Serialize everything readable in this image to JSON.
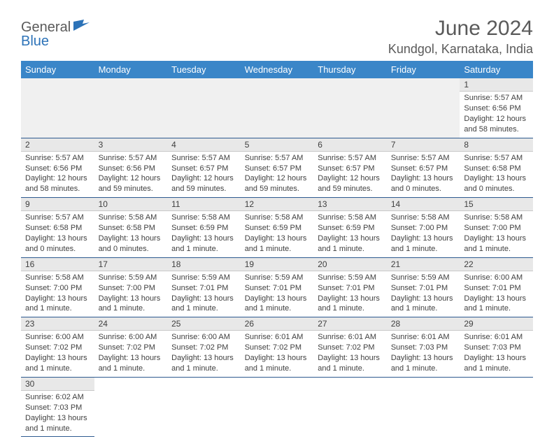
{
  "logo": {
    "part1": "General",
    "part2": "Blue"
  },
  "title": "June 2024",
  "location": "Kundgol, Karnataka, India",
  "colors": {
    "header_bg": "#3a86c8",
    "header_text": "#ffffff",
    "daynum_bg": "#e8e8e8",
    "border": "#2d5a8f",
    "logo_gray": "#5a5a5a",
    "logo_blue": "#2d73b8",
    "text": "#404040"
  },
  "weekdays": [
    "Sunday",
    "Monday",
    "Tuesday",
    "Wednesday",
    "Thursday",
    "Friday",
    "Saturday"
  ],
  "weeks": [
    [
      null,
      null,
      null,
      null,
      null,
      null,
      {
        "n": "1",
        "sr": "Sunrise: 5:57 AM",
        "ss": "Sunset: 6:56 PM",
        "d1": "Daylight: 12 hours",
        "d2": "and 58 minutes."
      }
    ],
    [
      {
        "n": "2",
        "sr": "Sunrise: 5:57 AM",
        "ss": "Sunset: 6:56 PM",
        "d1": "Daylight: 12 hours",
        "d2": "and 58 minutes."
      },
      {
        "n": "3",
        "sr": "Sunrise: 5:57 AM",
        "ss": "Sunset: 6:56 PM",
        "d1": "Daylight: 12 hours",
        "d2": "and 59 minutes."
      },
      {
        "n": "4",
        "sr": "Sunrise: 5:57 AM",
        "ss": "Sunset: 6:57 PM",
        "d1": "Daylight: 12 hours",
        "d2": "and 59 minutes."
      },
      {
        "n": "5",
        "sr": "Sunrise: 5:57 AM",
        "ss": "Sunset: 6:57 PM",
        "d1": "Daylight: 12 hours",
        "d2": "and 59 minutes."
      },
      {
        "n": "6",
        "sr": "Sunrise: 5:57 AM",
        "ss": "Sunset: 6:57 PM",
        "d1": "Daylight: 12 hours",
        "d2": "and 59 minutes."
      },
      {
        "n": "7",
        "sr": "Sunrise: 5:57 AM",
        "ss": "Sunset: 6:57 PM",
        "d1": "Daylight: 13 hours",
        "d2": "and 0 minutes."
      },
      {
        "n": "8",
        "sr": "Sunrise: 5:57 AM",
        "ss": "Sunset: 6:58 PM",
        "d1": "Daylight: 13 hours",
        "d2": "and 0 minutes."
      }
    ],
    [
      {
        "n": "9",
        "sr": "Sunrise: 5:57 AM",
        "ss": "Sunset: 6:58 PM",
        "d1": "Daylight: 13 hours",
        "d2": "and 0 minutes."
      },
      {
        "n": "10",
        "sr": "Sunrise: 5:58 AM",
        "ss": "Sunset: 6:58 PM",
        "d1": "Daylight: 13 hours",
        "d2": "and 0 minutes."
      },
      {
        "n": "11",
        "sr": "Sunrise: 5:58 AM",
        "ss": "Sunset: 6:59 PM",
        "d1": "Daylight: 13 hours",
        "d2": "and 1 minute."
      },
      {
        "n": "12",
        "sr": "Sunrise: 5:58 AM",
        "ss": "Sunset: 6:59 PM",
        "d1": "Daylight: 13 hours",
        "d2": "and 1 minute."
      },
      {
        "n": "13",
        "sr": "Sunrise: 5:58 AM",
        "ss": "Sunset: 6:59 PM",
        "d1": "Daylight: 13 hours",
        "d2": "and 1 minute."
      },
      {
        "n": "14",
        "sr": "Sunrise: 5:58 AM",
        "ss": "Sunset: 7:00 PM",
        "d1": "Daylight: 13 hours",
        "d2": "and 1 minute."
      },
      {
        "n": "15",
        "sr": "Sunrise: 5:58 AM",
        "ss": "Sunset: 7:00 PM",
        "d1": "Daylight: 13 hours",
        "d2": "and 1 minute."
      }
    ],
    [
      {
        "n": "16",
        "sr": "Sunrise: 5:58 AM",
        "ss": "Sunset: 7:00 PM",
        "d1": "Daylight: 13 hours",
        "d2": "and 1 minute."
      },
      {
        "n": "17",
        "sr": "Sunrise: 5:59 AM",
        "ss": "Sunset: 7:00 PM",
        "d1": "Daylight: 13 hours",
        "d2": "and 1 minute."
      },
      {
        "n": "18",
        "sr": "Sunrise: 5:59 AM",
        "ss": "Sunset: 7:01 PM",
        "d1": "Daylight: 13 hours",
        "d2": "and 1 minute."
      },
      {
        "n": "19",
        "sr": "Sunrise: 5:59 AM",
        "ss": "Sunset: 7:01 PM",
        "d1": "Daylight: 13 hours",
        "d2": "and 1 minute."
      },
      {
        "n": "20",
        "sr": "Sunrise: 5:59 AM",
        "ss": "Sunset: 7:01 PM",
        "d1": "Daylight: 13 hours",
        "d2": "and 1 minute."
      },
      {
        "n": "21",
        "sr": "Sunrise: 5:59 AM",
        "ss": "Sunset: 7:01 PM",
        "d1": "Daylight: 13 hours",
        "d2": "and 1 minute."
      },
      {
        "n": "22",
        "sr": "Sunrise: 6:00 AM",
        "ss": "Sunset: 7:01 PM",
        "d1": "Daylight: 13 hours",
        "d2": "and 1 minute."
      }
    ],
    [
      {
        "n": "23",
        "sr": "Sunrise: 6:00 AM",
        "ss": "Sunset: 7:02 PM",
        "d1": "Daylight: 13 hours",
        "d2": "and 1 minute."
      },
      {
        "n": "24",
        "sr": "Sunrise: 6:00 AM",
        "ss": "Sunset: 7:02 PM",
        "d1": "Daylight: 13 hours",
        "d2": "and 1 minute."
      },
      {
        "n": "25",
        "sr": "Sunrise: 6:00 AM",
        "ss": "Sunset: 7:02 PM",
        "d1": "Daylight: 13 hours",
        "d2": "and 1 minute."
      },
      {
        "n": "26",
        "sr": "Sunrise: 6:01 AM",
        "ss": "Sunset: 7:02 PM",
        "d1": "Daylight: 13 hours",
        "d2": "and 1 minute."
      },
      {
        "n": "27",
        "sr": "Sunrise: 6:01 AM",
        "ss": "Sunset: 7:02 PM",
        "d1": "Daylight: 13 hours",
        "d2": "and 1 minute."
      },
      {
        "n": "28",
        "sr": "Sunrise: 6:01 AM",
        "ss": "Sunset: 7:03 PM",
        "d1": "Daylight: 13 hours",
        "d2": "and 1 minute."
      },
      {
        "n": "29",
        "sr": "Sunrise: 6:01 AM",
        "ss": "Sunset: 7:03 PM",
        "d1": "Daylight: 13 hours",
        "d2": "and 1 minute."
      }
    ],
    [
      {
        "n": "30",
        "sr": "Sunrise: 6:02 AM",
        "ss": "Sunset: 7:03 PM",
        "d1": "Daylight: 13 hours",
        "d2": "and 1 minute."
      },
      null,
      null,
      null,
      null,
      null,
      null
    ]
  ]
}
